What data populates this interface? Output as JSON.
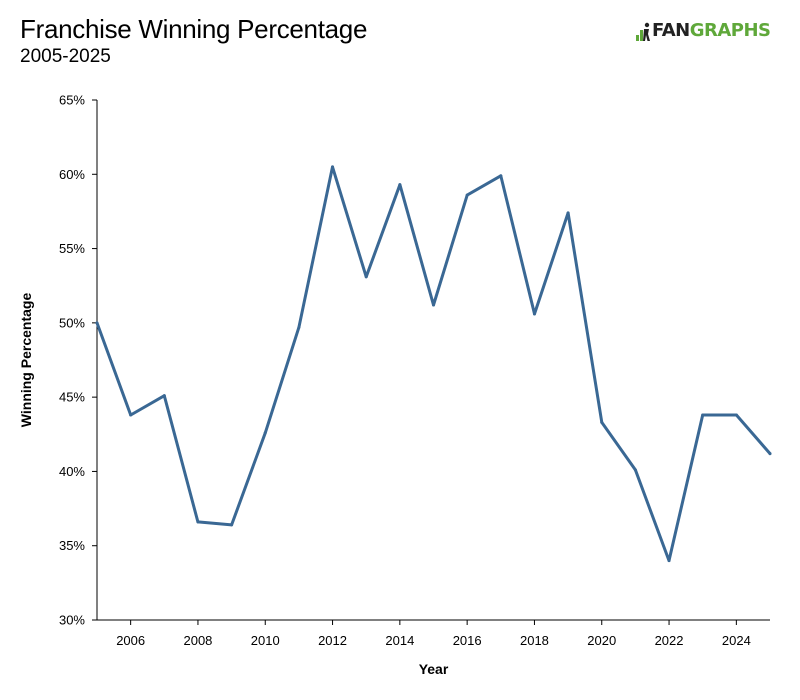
{
  "header": {
    "title": "Franchise Winning Percentage",
    "subtitle": "2005-2025",
    "logo_left": "FAN",
    "logo_right": "GRAPHS",
    "logo_color": "#5fa83a"
  },
  "chart_data": {
    "type": "line",
    "title": "Franchise Winning Percentage",
    "subtitle": "2005-2025",
    "xlabel": "Year",
    "ylabel": "Winning Percentage",
    "xlim": [
      2005,
      2025
    ],
    "ylim": [
      30,
      65
    ],
    "x_ticks": [
      2006,
      2008,
      2010,
      2012,
      2014,
      2016,
      2018,
      2020,
      2022,
      2024
    ],
    "y_ticks": [
      30,
      35,
      40,
      45,
      50,
      55,
      60,
      65
    ],
    "y_tick_format": "%",
    "grid": false,
    "line_color": "#3a6894",
    "series": [
      {
        "x": [
          2005,
          2006,
          2007,
          2008,
          2009,
          2010,
          2011,
          2012,
          2013,
          2014,
          2015,
          2016,
          2017,
          2018,
          2019,
          2020,
          2021,
          2022,
          2023,
          2024,
          2025
        ],
        "values": [
          50.0,
          43.8,
          45.1,
          36.6,
          36.4,
          42.6,
          49.7,
          60.5,
          53.1,
          59.3,
          51.2,
          58.6,
          59.9,
          50.6,
          57.4,
          43.3,
          40.1,
          34.0,
          43.8,
          43.8,
          41.2
        ]
      }
    ]
  }
}
